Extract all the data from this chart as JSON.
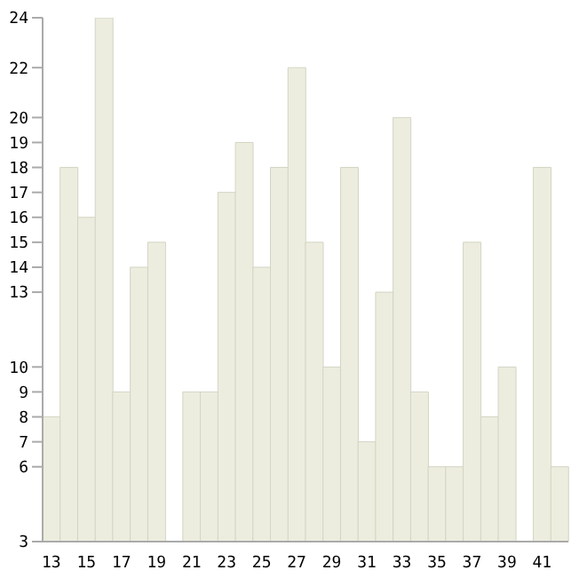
{
  "chart_data": {
    "type": "bar",
    "categories": [
      "13",
      null,
      "15",
      null,
      "17",
      null,
      "19",
      null,
      "21",
      null,
      "23",
      null,
      "25",
      null,
      "27",
      null,
      "29",
      null,
      "31",
      null,
      "33",
      null,
      "35",
      null,
      "37",
      null,
      "39",
      null,
      "41",
      null
    ],
    "values": [
      8,
      18,
      16,
      24,
      9,
      14,
      15,
      3,
      9,
      9,
      17,
      19,
      14,
      18,
      22,
      15,
      10,
      18,
      7,
      13,
      20,
      9,
      6,
      6,
      15,
      8,
      10,
      3,
      18,
      6
    ],
    "color": "#ededdf",
    "ylim": [
      3,
      24
    ],
    "yticks": [
      3,
      6,
      7,
      8,
      9,
      10,
      13,
      14,
      15,
      16,
      17,
      18,
      19,
      20,
      22,
      24
    ],
    "grid": false,
    "legend": false
  }
}
